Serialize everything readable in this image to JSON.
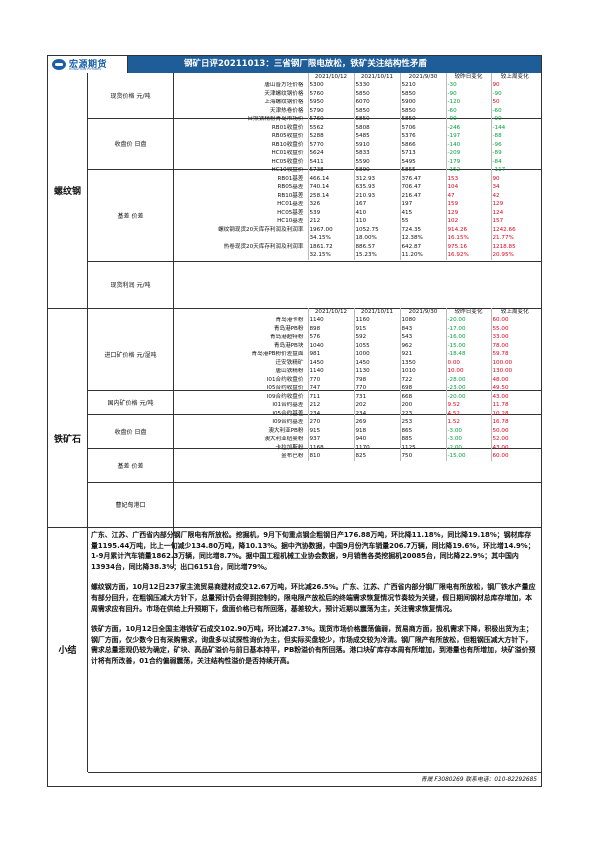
{
  "header": {
    "logo_cn": "宏源期货",
    "logo_en": "HONGYUAN FUTURES",
    "title": "钢矿日评20211013：三省钢厂限电放松，铁矿关注结构性矛盾"
  },
  "rebar": {
    "section_label": "螺纹钢",
    "columns": [
      "",
      "2021/10/12",
      "2021/10/11",
      "2021/9/30",
      "较昨日变化",
      "较上周变化"
    ],
    "groups": [
      {
        "label": "现货价格 元/吨",
        "rows": [
          [
            "唐山普方坯价格",
            "5300",
            "5330",
            "5210",
            "-30",
            "90"
          ],
          [
            "天津螺纹钢价格",
            "5760",
            "5850",
            "5850",
            "-90",
            "-90"
          ],
          [
            "上海螺纹钢价格",
            "5950",
            "6070",
            "5900",
            "-120",
            "50"
          ],
          [
            "天津热卷价格",
            "5790",
            "5850",
            "5850",
            "-60",
            "-60"
          ],
          [
            "日照铁精粉青岛市场价",
            "5760",
            "5850",
            "5850",
            "-90",
            "-90"
          ]
        ]
      },
      {
        "label": "收盘价 日盘",
        "rows": [
          [
            "RB01收盘价",
            "5562",
            "5808",
            "5706",
            "-246",
            "-144"
          ],
          [
            "RB05收盘价",
            "5288",
            "5485",
            "5376",
            "-197",
            "-88"
          ],
          [
            "RB10收盘价",
            "5770",
            "5910",
            "5866",
            "-140",
            "-96"
          ],
          [
            "HC01收盘价",
            "5624",
            "5833",
            "5713",
            "-209",
            "-89"
          ],
          [
            "HC05收盘价",
            "5411",
            "5590",
            "5495",
            "-179",
            "-84"
          ],
          [
            "HC10收盘价",
            "5738",
            "5890",
            "5855",
            "-152",
            "-117"
          ]
        ]
      },
      {
        "label": "基差 价差",
        "rows": [
          [
            "RB01基差",
            "466.14",
            "312.93",
            "376.47",
            "153",
            "90"
          ],
          [
            "RB05基差",
            "740.14",
            "635.93",
            "706.47",
            "104",
            "34"
          ],
          [
            "RB10基差",
            "258.14",
            "210.93",
            "216.47",
            "47",
            "42"
          ],
          [
            "HC01基差",
            "326",
            "167",
            "197",
            "159",
            "129"
          ],
          [
            "HC05基差",
            "539",
            "410",
            "415",
            "129",
            "124"
          ],
          [
            "HC10基差",
            "212",
            "110",
            "55",
            "102",
            "157"
          ]
        ]
      },
      {
        "label": "现货利润 元/吨",
        "rows": [
          [
            "螺纹钢现货20天库存利润及利润率",
            "1967.00",
            "1052.75",
            "724.35",
            "914.26",
            "1242.66"
          ],
          [
            "",
            "34.15%",
            "18.00%",
            "12.38%",
            "16.15%",
            "21.77%"
          ],
          [
            "热卷现货20天库存利润及利润率",
            "1861.72",
            "886.57",
            "642.87",
            "975.16",
            "1218.85"
          ],
          [
            "",
            "32.15%",
            "15.23%",
            "11.20%",
            "16.92%",
            "20.95%"
          ]
        ]
      }
    ]
  },
  "iron": {
    "section_label": "铁矿石",
    "columns": [
      "",
      "2021/10/12",
      "2021/10/11",
      "2021/9/30",
      "较昨日变化",
      "较上周变化"
    ],
    "groups": [
      {
        "label": "进口矿价格 元/湿吨",
        "rows": [
          [
            "青岛港卡粉",
            "1140",
            "1160",
            "1080",
            "-20.00",
            "60.00"
          ],
          [
            "青岛港PB粉",
            "898",
            "915",
            "843",
            "-17.00",
            "55.00"
          ],
          [
            "青岛港超特粉",
            "576",
            "592",
            "543",
            "-16.00",
            "33.00"
          ],
          [
            "青岛港PB块",
            "1040",
            "1055",
            "962",
            "-15.00",
            "78.00"
          ],
          [
            "青岛港PB粉价差盘面",
            "981",
            "1000",
            "921",
            "-18.48",
            "59.78"
          ]
        ]
      },
      {
        "label": "国内矿价格 元/吨",
        "rows": [
          [
            "迁安铁精矿",
            "1450",
            "1450",
            "1350",
            "0.00",
            "100.00"
          ],
          [
            "唐山铁精粉",
            "1140",
            "1130",
            "1010",
            "10.00",
            "130.00"
          ]
        ]
      },
      {
        "label": "收盘价 日盘",
        "rows": [
          [
            "I01合约收盘价",
            "770",
            "798",
            "722",
            "-28.00",
            "48.00"
          ],
          [
            "I05合约收盘价",
            "747",
            "770",
            "698",
            "-23.00",
            "49.50"
          ],
          [
            "I09合约收盘价",
            "711",
            "731",
            "668",
            "-20.00",
            "43.00"
          ]
        ]
      },
      {
        "label": "基差 价差",
        "rows": [
          [
            "I01合约基差",
            "212",
            "202",
            "200",
            "9.52",
            "11.78"
          ],
          [
            "I05合约基差",
            "234",
            "234",
            "223",
            "4.52",
            "10.28"
          ],
          [
            "I09合约基差",
            "270",
            "269",
            "253",
            "1.52",
            "16.78"
          ]
        ]
      },
      {
        "label": "曹妃甸港口",
        "rows": [
          [
            "澳大利亚PB粉",
            "915",
            "918",
            "865",
            "-3.00",
            "50.00"
          ],
          [
            "澳大利亚纽曼粉",
            "937",
            "940",
            "885",
            "-3.00",
            "52.00"
          ],
          [
            "卡拉加斯粉",
            "1168",
            "1170",
            "1125",
            "-2.00",
            "43.00"
          ],
          [
            "金布巴粉",
            "810",
            "825",
            "750",
            "-15.00",
            "60.00"
          ]
        ]
      }
    ]
  },
  "summary": {
    "label": "小结",
    "paragraphs": [
      "广东、江苏、广西省内部分钢厂限电有所放松。挖掘机，9月下旬重点钢企粗钢日产176.88万吨，环比降11.18%，同比降19.18%；钢材库存量1195.44万吨，比上一旬减少134.80万吨，降10.13%。据中汽协数据，中国9月份汽车销量206.7万辆，同比降19.6%，环比增14.9%；1-9月累计汽车销量1862.3万辆，同比增8.7%。据中国工程机械工业协会数据，9月销售各类挖掘机20085台，同比降22.9%；其中国内13934台，同比降38.3%；出口6151台，同比增79%。",
      "螺纹钢方面，10月12日237家主流贸易商建材成交12.67万吨，环比减26.5%。广东、江苏、广西省内部分钢厂限电有所放松，钢厂铁水产量应有部分回升，在粗钢压减大方针下，总量预计仍会得到控制的，限电限产放松后的终端需求恢复情况节奏较为关键，假日期间钢材总库存增加，本周需求应有回升。市场在供给上升预期下，盘面价格已有所回落，基差较大，预计近期以震荡为主，关注需求恢复情况。",
      "铁矿方面，10月12日全国主港铁矿石成交102.90万吨，环比减27.3%。现货市场价格震荡偏弱，贸易商方面，投机需求下降，积极出货为主；钢厂方面，仅少数今日有采购需求，询盘多以试探性询价为主，但实际买盘较少，市场成交较为冷清。钢厂限产有所放松，但粗钢压减大方针下，需求总量悲观仍较为确定，矿块、高品矿溢价与前日基本持平，PB粉溢价有所回落。港口块矿库存本周有所增加，到港量也有所增加，块矿溢价预计将有所改善，01合约偏弱震荡，关注结构性溢价是否持续开高。"
    ]
  },
  "footer": {
    "text": "青晟  F3080269  联系电话：010-82292685"
  }
}
